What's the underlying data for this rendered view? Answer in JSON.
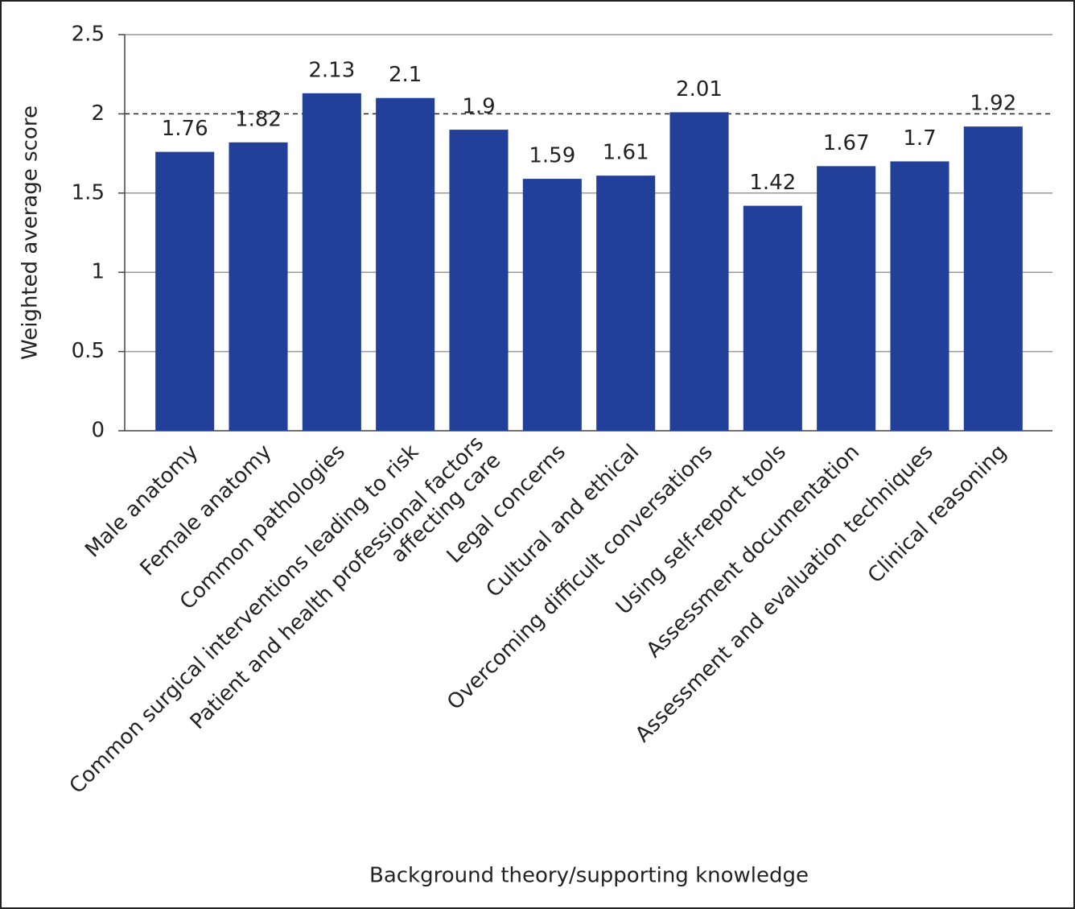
{
  "chart_data": {
    "type": "bar",
    "x_label": "Background theory/supporting knowledge",
    "y_label": "Weighted average score",
    "categories": [
      "Male anatomy",
      "Female anatomy",
      "Common pathologies",
      "Common surgical interventions leading to risk",
      "Patient and health professional factors\naffecting care",
      "Legal concerns",
      "Cultural and ethical",
      "Overcoming difficult conversations",
      "Using self-report tools",
      "Assessment documentation",
      "Assessment and evaluation techniques",
      "Clinical reasoning"
    ],
    "values": [
      1.76,
      1.82,
      2.13,
      2.1,
      1.9,
      1.59,
      1.61,
      2.01,
      1.42,
      1.67,
      1.7,
      1.92
    ],
    "color": "#22409a",
    "ylim": [
      0,
      2.5
    ],
    "yticks": [
      0,
      0.5,
      1,
      1.5,
      2,
      2.5
    ],
    "grid": true,
    "reference_line": 2
  }
}
